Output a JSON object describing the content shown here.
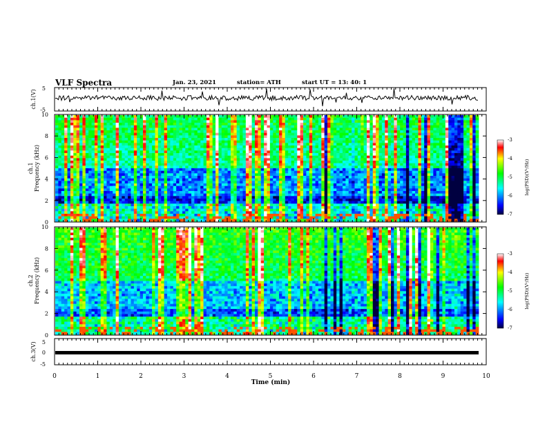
{
  "header": {
    "title": "VLF Spectra",
    "date": "Jan. 23, 2021",
    "station": "station= ATH",
    "start": "start  UT =   13: 40: 1"
  },
  "chart_data": [
    {
      "type": "line",
      "ylabel": "ch.1(V)",
      "ylim": [
        -5,
        5
      ],
      "yticks": [
        "5",
        "-5"
      ],
      "series": [
        {
          "trend": "noisy trace near 0 V with sharp spikes",
          "values": [
            -0.2,
            -0.4,
            0.3,
            -0.5,
            0.1,
            -0.3,
            0.4,
            -0.6,
            0.2,
            -0.1
          ]
        }
      ]
    },
    {
      "type": "heatmap",
      "ylabel1": "ch.1",
      "ylabel2": "Frequency  (kHz)",
      "ylim": [
        0,
        10
      ],
      "yticks": [
        "0",
        "2",
        "4",
        "6",
        "8",
        "10"
      ],
      "colorbar": {
        "label": "log(PSD)(V²/Hz)",
        "range": [
          -7,
          -3
        ],
        "ticks": [
          "-3",
          "-4",
          "-5",
          "-6",
          "-7"
        ]
      }
    },
    {
      "type": "heatmap",
      "ylabel1": "ch.2",
      "ylabel2": "Frequency  (kHz)",
      "ylim": [
        0,
        10
      ],
      "yticks": [
        "0",
        "2",
        "4",
        "6",
        "8",
        "10"
      ],
      "colorbar": {
        "label": "log(PSD)(V²/Hz)",
        "range": [
          -7,
          -3
        ],
        "ticks": [
          "-3",
          "-4",
          "-5",
          "-6",
          "-7"
        ]
      }
    },
    {
      "type": "line",
      "ylabel": "ch.3(V)",
      "ylim": [
        -5,
        5
      ],
      "yticks": [
        "5",
        "0",
        "-5"
      ],
      "series": [
        {
          "constant": 0
        }
      ]
    }
  ],
  "xaxis": {
    "label": "Time  (min)",
    "range": [
      0,
      10
    ],
    "ticks": [
      "0",
      "1",
      "2",
      "3",
      "4",
      "5",
      "6",
      "7",
      "8",
      "9",
      "10"
    ]
  },
  "colors": {
    "frame": "#000000",
    "trace": "#000000"
  }
}
